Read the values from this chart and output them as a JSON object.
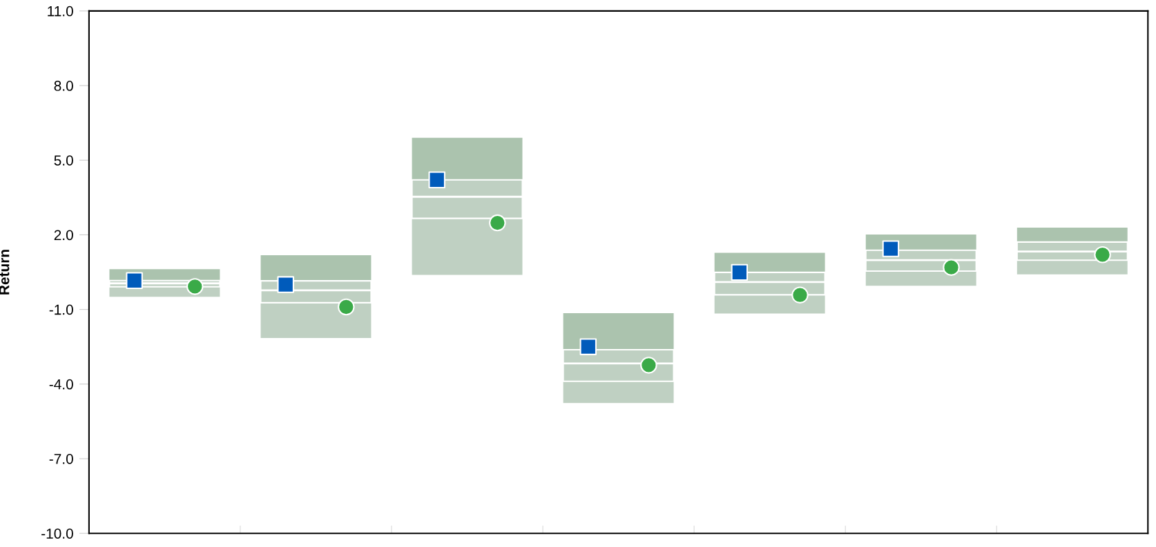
{
  "chart_data": {
    "type": "box",
    "ylabel": "Return",
    "categories": [
      null,
      null,
      null,
      null,
      null,
      null,
      null
    ],
    "ylim": [
      -10,
      11
    ],
    "yticks": [
      {
        "value": -10,
        "label": "-10.0"
      },
      {
        "value": -7,
        "label": "-7.0"
      },
      {
        "value": -4,
        "label": "-4.0"
      },
      {
        "value": -1,
        "label": "-1.0"
      },
      {
        "value": 2,
        "label": "2.0"
      },
      {
        "value": 5,
        "label": "5.0"
      },
      {
        "value": 8,
        "label": "8.0"
      },
      {
        "value": 11,
        "label": "11.0"
      }
    ],
    "grid": false,
    "legend": false,
    "series": [
      {
        "color": "#bfd0c2",
        "boxes": [
          {
            "low": -0.49,
            "q1": -0.09,
            "median": 0.05,
            "q3": 0.16,
            "high": 0.62
          },
          {
            "low": -2.15,
            "q1": -0.73,
            "median": -0.23,
            "q3": 0.15,
            "high": 1.18
          },
          {
            "low": 0.39,
            "q1": 2.66,
            "median": 3.53,
            "q3": 4.21,
            "high": 5.9
          },
          {
            "low": -4.76,
            "q1": -3.89,
            "median": -3.17,
            "q3": -2.62,
            "high": -1.15
          },
          {
            "low": -1.16,
            "q1": -0.41,
            "median": 0.1,
            "q3": 0.49,
            "high": 1.28
          },
          {
            "low": -0.05,
            "q1": 0.54,
            "median": 0.98,
            "q3": 1.38,
            "high": 2.01
          },
          {
            "low": 0.41,
            "q1": 0.98,
            "median": 1.33,
            "q3": 1.71,
            "high": 2.29
          }
        ]
      },
      {
        "type": "scatter",
        "marker": "square",
        "color": "#005bbb",
        "values": [
          0.16,
          0.0,
          4.21,
          -2.5,
          0.49,
          1.44,
          null
        ]
      },
      {
        "type": "scatter",
        "marker": "circle",
        "color": "#3aaa48",
        "values": [
          -0.08,
          -0.9,
          2.48,
          -3.24,
          -0.42,
          0.69,
          1.2
        ]
      }
    ]
  }
}
